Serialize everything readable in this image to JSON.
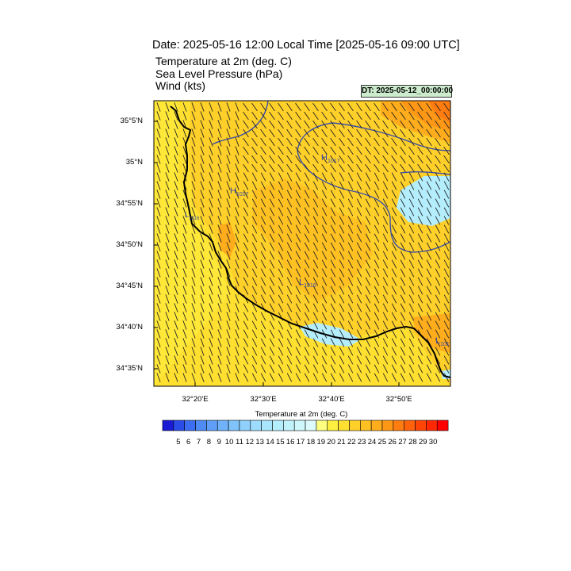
{
  "title": "Date: 2025-05-16  12:00 Local Time [2025-05-16  09:00 UTC]",
  "fields": [
    "Temperature at 2m   (deg. C)",
    "Sea Level Pressure   (hPa)",
    "Wind   (kts)"
  ],
  "dt_badge": "DT: 2025-05-12_00:00:00",
  "map": {
    "lat_labels": [
      "35°5'N",
      "35°N",
      "34°55'N",
      "34°50'N",
      "34°45'N",
      "34°40'N",
      "34°35'N"
    ],
    "lon_labels": [
      "32°20'E",
      "32°30'E",
      "32°40'E",
      "32°50'E"
    ],
    "pressure_markers": [
      {
        "kind": "H",
        "value": "1017"
      },
      {
        "kind": "H",
        "value": "1017"
      },
      {
        "kind": "L",
        "value": "1016"
      },
      {
        "kind": "L",
        "value": "1016"
      },
      {
        "kind": "L",
        "value": "101"
      }
    ]
  },
  "colorbar": {
    "title": "Temperature at 2m  (deg. C)",
    "ticks": [
      "5",
      "6",
      "7",
      "8",
      "9",
      "10",
      "11",
      "12",
      "13",
      "14",
      "15",
      "16",
      "17",
      "18",
      "19",
      "20",
      "21",
      "22",
      "23",
      "24",
      "25",
      "26",
      "27",
      "28",
      "29",
      "30"
    ],
    "colors": [
      "#1b1bd6",
      "#2b4be8",
      "#3c6ef2",
      "#4f8bf5",
      "#5f9ff7",
      "#6fb2f9",
      "#80c3fb",
      "#8fd1fc",
      "#9ddcfd",
      "#a9e6fd",
      "#b4eefd",
      "#c1f3fc",
      "#cff8fc",
      "#ddfbfc",
      "#ffff80",
      "#ffef40",
      "#ffe030",
      "#ffd029",
      "#ffc122",
      "#ffad1c",
      "#ff9716",
      "#ff7d10",
      "#ff620b",
      "#ff4506",
      "#ff2803",
      "#ff0000"
    ]
  }
}
